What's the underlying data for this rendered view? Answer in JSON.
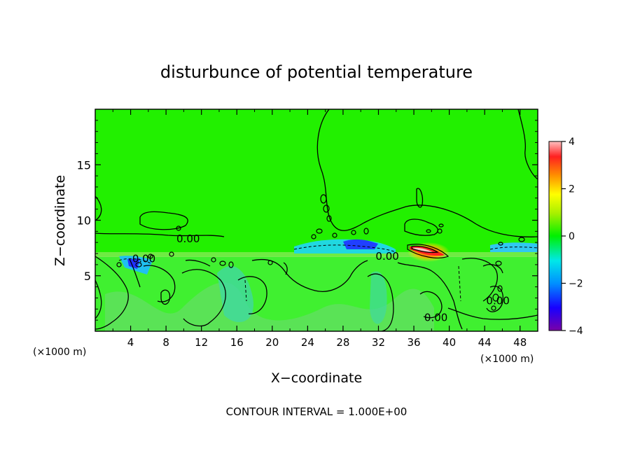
{
  "chart_data": {
    "type": "heatmap",
    "title": "disturbunce of potential temperature",
    "xlabel": "X−coordinate",
    "ylabel": "Z−coordinate",
    "x_unit_left": "(×1000 m)",
    "x_unit_right": "(×1000 m)",
    "footer": "CONTOUR INTERVAL = 1.000E+00",
    "xlim": [
      0,
      50
    ],
    "ylim": [
      0,
      20
    ],
    "x_ticks": [
      4,
      8,
      12,
      16,
      20,
      24,
      28,
      32,
      36,
      40,
      44,
      48
    ],
    "y_ticks": [
      5,
      10,
      15
    ],
    "contour_labels": [
      {
        "text": "0.00",
        "x": 10.5,
        "z": 8.4
      },
      {
        "text": "0.00",
        "x": 5.5,
        "z": 6.6
      },
      {
        "text": "0.00",
        "x": 33.0,
        "z": 6.8
      },
      {
        "text": "0.00",
        "x": 38.5,
        "z": 1.3
      },
      {
        "text": "0.00",
        "x": 45.5,
        "z": 2.8
      }
    ],
    "colorbar": {
      "range": [
        -4,
        4
      ],
      "ticks": [
        4,
        2,
        0,
        -2,
        -4
      ]
    },
    "features": [
      {
        "x": 38.0,
        "z": 7.2,
        "value": 4
      },
      {
        "x": 30.0,
        "z": 7.5,
        "value": -2
      },
      {
        "x": 5.0,
        "z": 6.2,
        "value": -2
      }
    ]
  }
}
